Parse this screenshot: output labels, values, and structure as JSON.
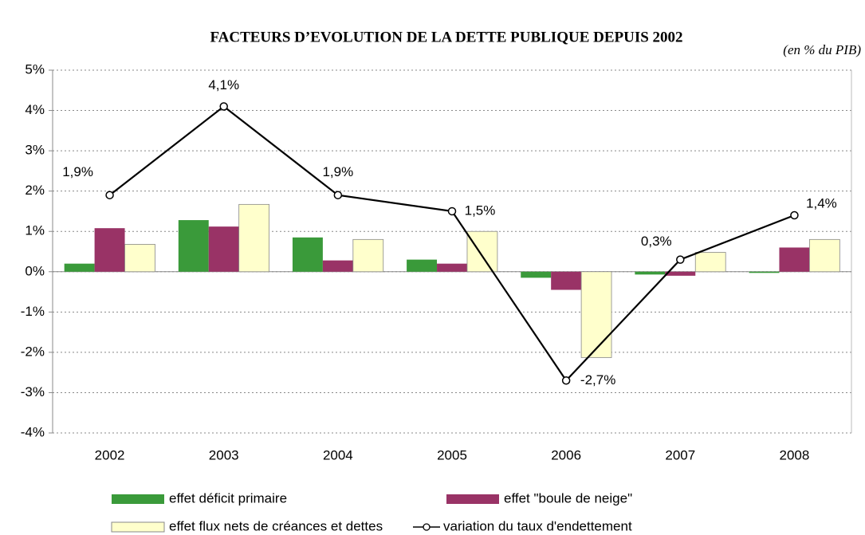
{
  "chart_data": {
    "type": "bar",
    "title": "FACTEURS D’EVOLUTION DE LA DETTE PUBLIQUE DEPUIS 2002",
    "subtitle": "(en % du PIB)",
    "categories": [
      "2002",
      "2003",
      "2004",
      "2005",
      "2006",
      "2007",
      "2008"
    ],
    "series": [
      {
        "name": "effet déficit primaire",
        "color": "#3a9a3a",
        "values": [
          0.2,
          1.28,
          0.85,
          0.3,
          -0.15,
          -0.07,
          -0.03
        ]
      },
      {
        "name": "effet \"boule de neige\"",
        "color": "#993366",
        "values": [
          1.08,
          1.12,
          0.28,
          0.2,
          -0.45,
          -0.1,
          0.6
        ]
      },
      {
        "name": "effet flux nets de créances et dettes",
        "color": "#ffffcc",
        "values": [
          0.68,
          1.67,
          0.8,
          1.0,
          -2.13,
          0.48,
          0.8
        ]
      },
      {
        "name": "variation du taux d'endettement",
        "type": "line",
        "color": "#000000",
        "values": [
          1.9,
          4.1,
          1.9,
          1.5,
          -2.7,
          0.3,
          1.4
        ],
        "value_labels": [
          "1,9%",
          "4,1%",
          "1,9%",
          "1,5%",
          "-2,7%",
          "0,3%",
          "1,4%"
        ]
      }
    ],
    "ylim": [
      -4,
      5
    ],
    "yticks": [
      {
        "value": -4,
        "label": "-4%"
      },
      {
        "value": -3,
        "label": "-3%"
      },
      {
        "value": -2,
        "label": "-2%"
      },
      {
        "value": -1,
        "label": "-1%"
      },
      {
        "value": 0,
        "label": "0%"
      },
      {
        "value": 1,
        "label": "1%"
      },
      {
        "value": 2,
        "label": "2%"
      },
      {
        "value": 3,
        "label": "3%"
      },
      {
        "value": 4,
        "label": "4%"
      },
      {
        "value": 5,
        "label": "5%"
      }
    ],
    "grid": true
  }
}
